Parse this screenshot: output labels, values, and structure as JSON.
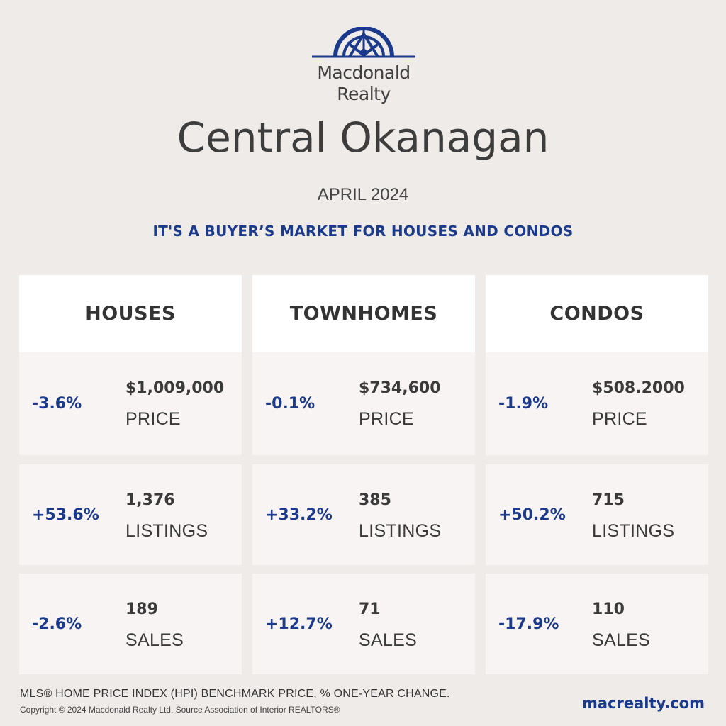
{
  "brand": {
    "name_line1": "Macdonald",
    "name_line2": "Realty",
    "color": "#1b3a8c",
    "logo_icon": "compass-rose-logo"
  },
  "title": "Central Okanagan",
  "subtitle": "APRIL 2024",
  "headline": "IT'S A BUYER’S MARKET FOR HOUSES AND CONDOS",
  "columns": [
    {
      "header": "HOUSES",
      "rows": [
        {
          "change": "-3.6%",
          "value": "$1,009,000",
          "label": "PRICE"
        },
        {
          "change": "+53.6%",
          "value": "1,376",
          "label": "LISTINGS"
        },
        {
          "change": "-2.6%",
          "value": "189",
          "label": "SALES"
        }
      ]
    },
    {
      "header": "TOWNHOMES",
      "rows": [
        {
          "change": "-0.1%",
          "value": "$734,600",
          "label": "PRICE"
        },
        {
          "change": "+33.2%",
          "value": "385",
          "label": "LISTINGS"
        },
        {
          "change": "+12.7%",
          "value": "71",
          "label": "SALES"
        }
      ]
    },
    {
      "header": "CONDOS",
      "rows": [
        {
          "change": "-1.9%",
          "value": "$508.2000",
          "label": "PRICE"
        },
        {
          "change": "+50.2%",
          "value": "715",
          "label": "LISTINGS"
        },
        {
          "change": "-17.9%",
          "value": "110",
          "label": "SALES"
        }
      ]
    }
  ],
  "footnote": "MLS® HOME PRICE INDEX (HPI) BENCHMARK PRICE, % ONE-YEAR CHANGE.",
  "copyright": "Copyright © 2024 Macdonald Realty Ltd. Source Association of Interior REALTORS®",
  "website": "macrealty.com",
  "colors": {
    "background": "#eeebe9",
    "accent": "#1b3a8c",
    "card": "#f7f4f3",
    "header_card": "#ffffff"
  }
}
